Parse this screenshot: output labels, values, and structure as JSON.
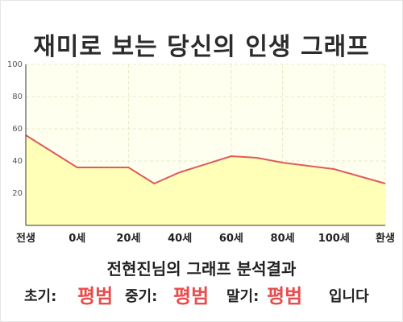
{
  "title": "재미로 보는 당신의 인생 그래프",
  "chart_data": {
    "type": "area",
    "x_categories": [
      "전생",
      "0세",
      "20세",
      "40세",
      "60세",
      "80세",
      "100세",
      "환생"
    ],
    "points": [
      {
        "x": "전생",
        "y": 56
      },
      {
        "x": "0세",
        "y": 36
      },
      {
        "x": "20세",
        "y": 36
      },
      {
        "x": "",
        "y": 26
      },
      {
        "x": "40세",
        "y": 33
      },
      {
        "x": "60세",
        "y": 43
      },
      {
        "x": "",
        "y": 42
      },
      {
        "x": "80세",
        "y": 39
      },
      {
        "x": "100세",
        "y": 35
      },
      {
        "x": "환생",
        "y": 26
      }
    ],
    "y_ticks": [
      20,
      40,
      60,
      80,
      100
    ],
    "ylim": [
      0,
      100
    ],
    "grid": true,
    "colors": {
      "line": "#e05a5a",
      "fill": "#ffffb8",
      "background": "#fffff0",
      "grid": "#e8e8c8"
    }
  },
  "result": {
    "title": "전현진님의 그래프 분석결과",
    "early_label": "초기:",
    "early_value": "평범",
    "mid_label": "중기:",
    "mid_value": "평범",
    "late_label": "말기:",
    "late_value": "평범",
    "suffix": "입니다",
    "value_color": "#e84c4c"
  }
}
